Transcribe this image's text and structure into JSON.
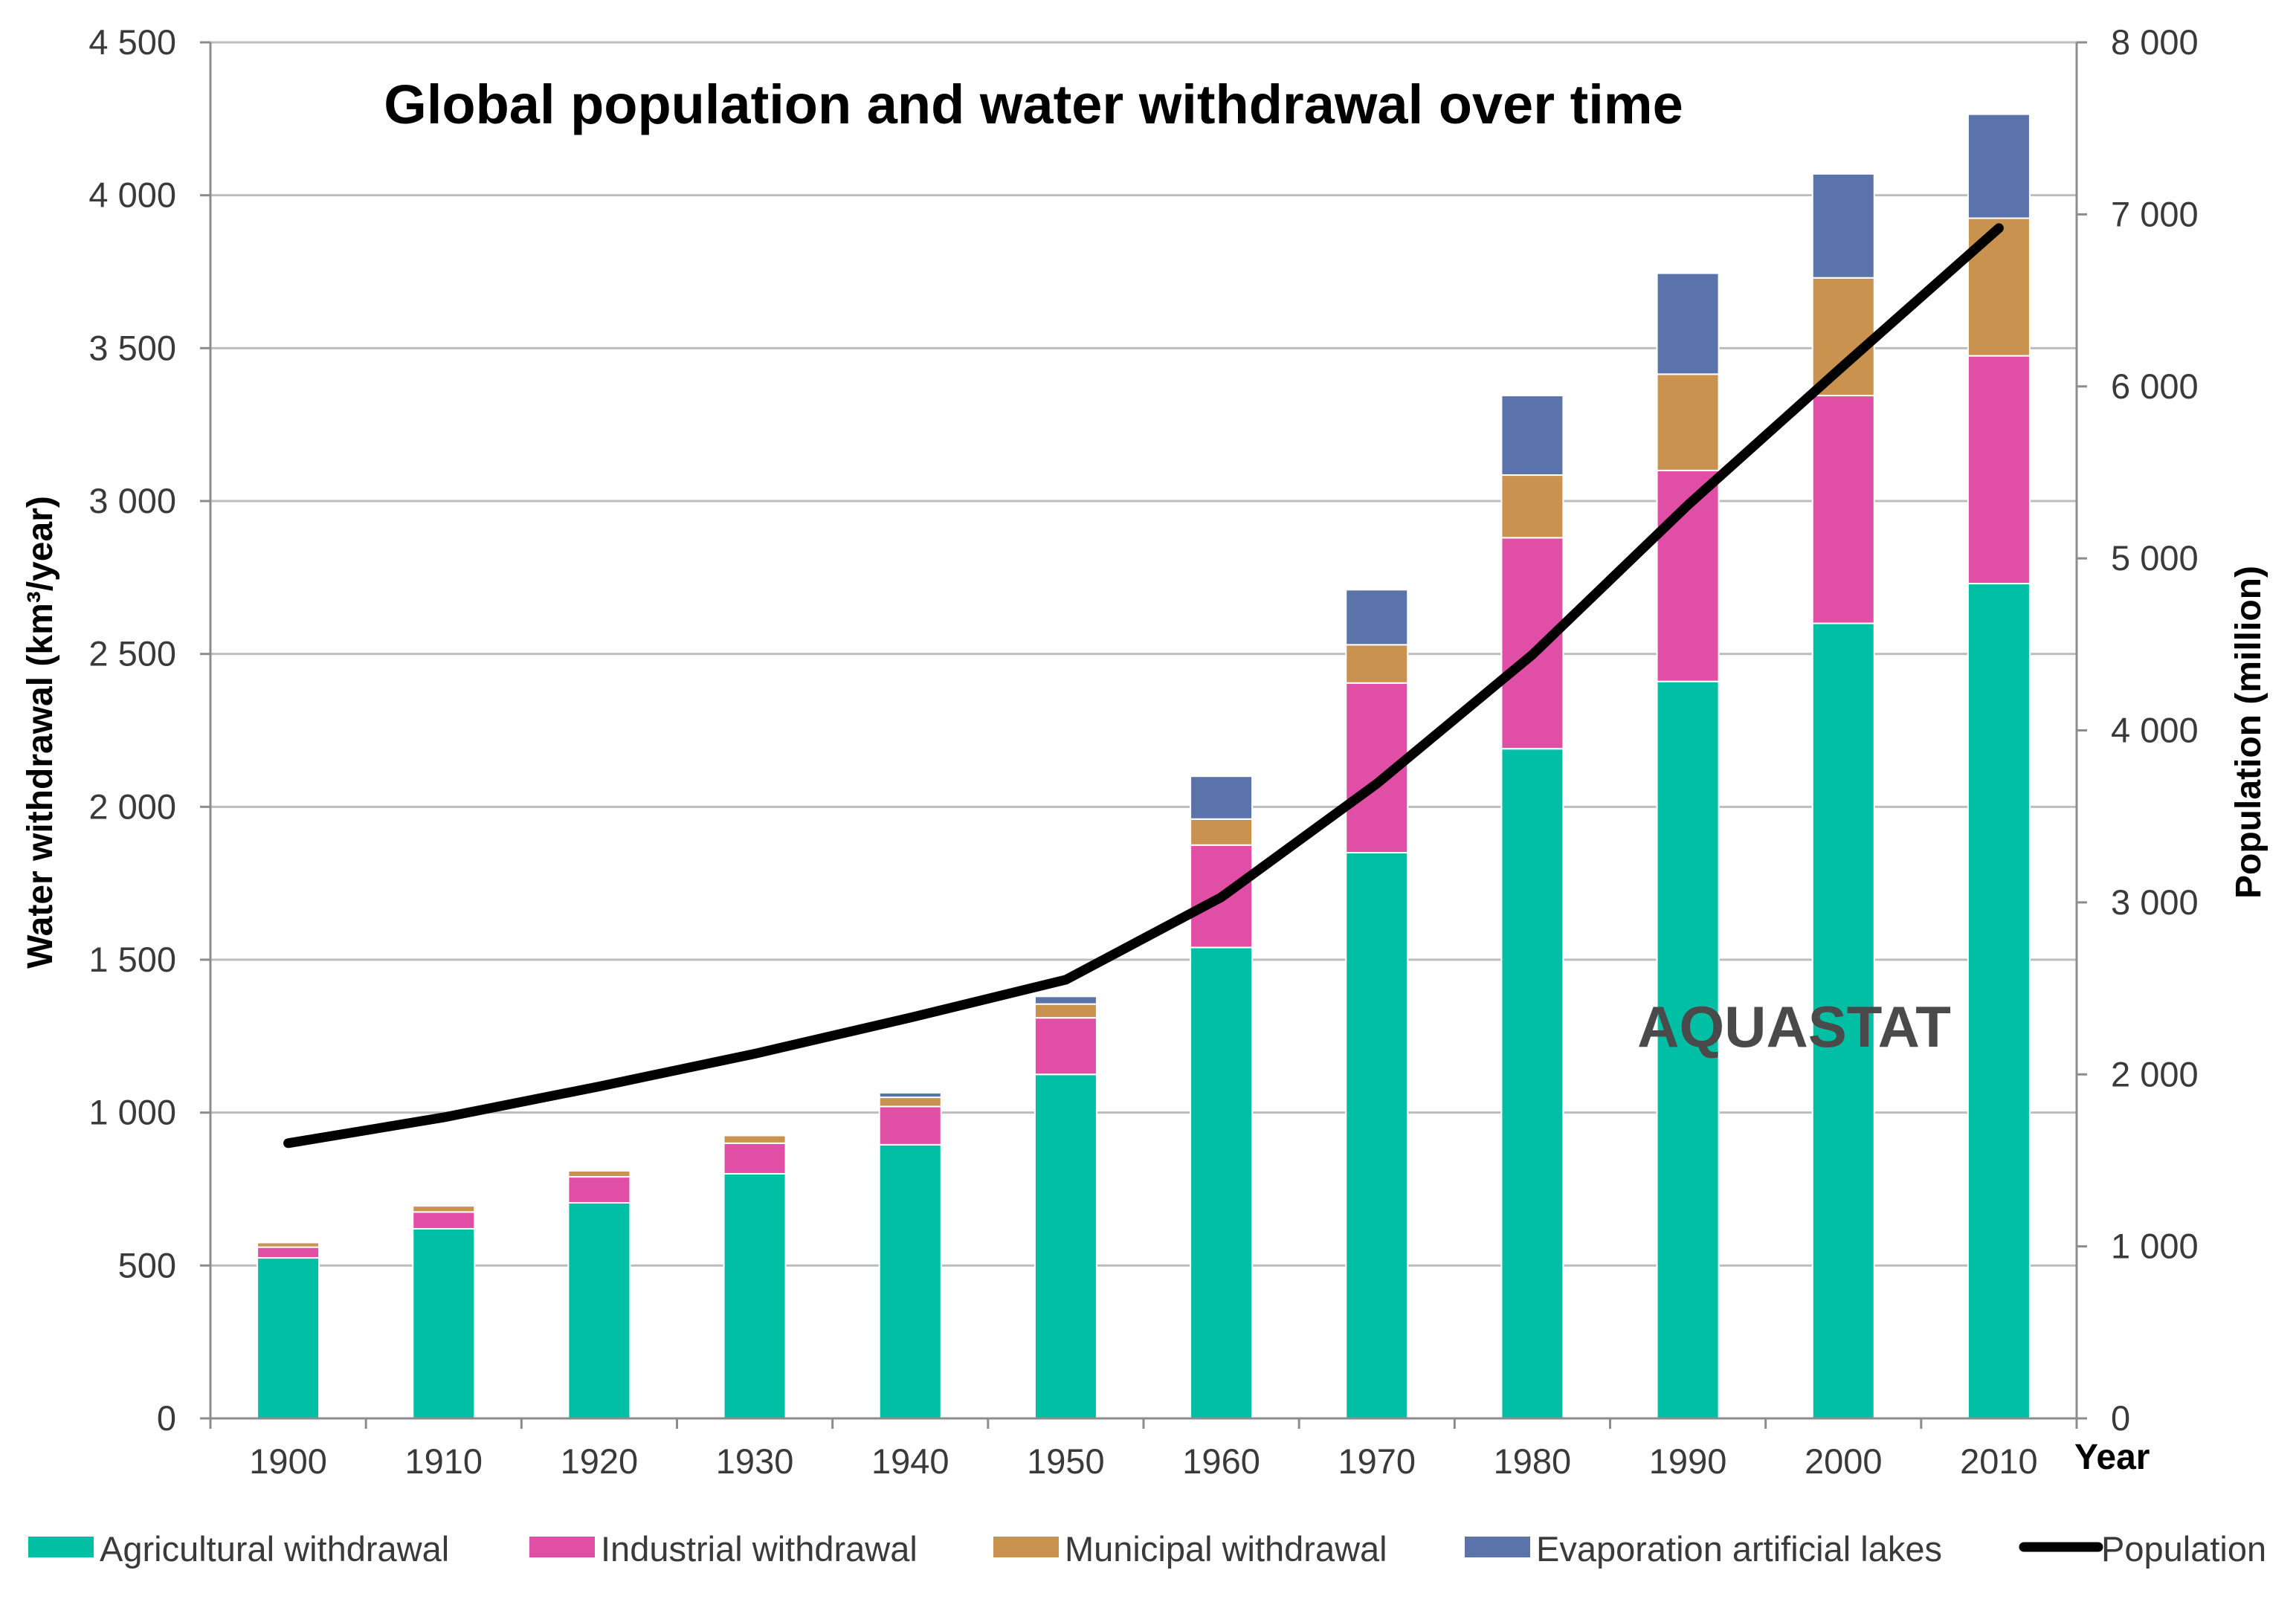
{
  "chart_data": {
    "type": "bar",
    "stacked": true,
    "title": "Global population and water withdrawal over time",
    "watermark": "AQUASTAT",
    "xlabel": "Year",
    "ylabel": "Water withdrawal (km³/year)",
    "y2label": "Population (million)",
    "ylim": [
      0,
      4500
    ],
    "y2lim": [
      0,
      8000
    ],
    "grid": true,
    "legend_position": "bottom",
    "categories": [
      "1900",
      "1910",
      "1920",
      "1930",
      "1940",
      "1950",
      "1960",
      "1970",
      "1980",
      "1990",
      "2000",
      "2010"
    ],
    "y_ticks": [
      {
        "value": 0,
        "label": "0"
      },
      {
        "value": 500,
        "label": "500"
      },
      {
        "value": 1000,
        "label": "1 000"
      },
      {
        "value": 1500,
        "label": "1 500"
      },
      {
        "value": 2000,
        "label": "2 000"
      },
      {
        "value": 2500,
        "label": "2 500"
      },
      {
        "value": 3000,
        "label": "3 000"
      },
      {
        "value": 3500,
        "label": "3 500"
      },
      {
        "value": 4000,
        "label": "4 000"
      },
      {
        "value": 4500,
        "label": "4 500"
      }
    ],
    "y2_ticks": [
      {
        "value": 0,
        "label": "0"
      },
      {
        "value": 1000,
        "label": "1 000"
      },
      {
        "value": 2000,
        "label": "2 000"
      },
      {
        "value": 3000,
        "label": "3 000"
      },
      {
        "value": 4000,
        "label": "4 000"
      },
      {
        "value": 5000,
        "label": "5 000"
      },
      {
        "value": 6000,
        "label": "6 000"
      },
      {
        "value": 7000,
        "label": "7 000"
      },
      {
        "value": 8000,
        "label": "8 000"
      }
    ],
    "series": [
      {
        "name": "Agricultural withdrawal",
        "color": "#00bfa5",
        "values": [
          525,
          620,
          705,
          800,
          895,
          1125,
          1540,
          1850,
          2190,
          2410,
          2600,
          2730
        ]
      },
      {
        "name": "Industrial withdrawal",
        "color": "#e04fa5",
        "values": [
          35,
          55,
          85,
          100,
          125,
          185,
          335,
          555,
          690,
          690,
          745,
          745
        ]
      },
      {
        "name": "Municipal withdrawal",
        "color": "#c9924f",
        "values": [
          15,
          20,
          20,
          25,
          30,
          45,
          85,
          125,
          205,
          315,
          385,
          450
        ]
      },
      {
        "name": "Evaporation artificial lakes",
        "color": "#5a73aa",
        "values": [
          0,
          0,
          5,
          5,
          15,
          25,
          140,
          180,
          260,
          330,
          340,
          340
        ]
      }
    ],
    "line_series": {
      "name": "Population",
      "color": "#000000",
      "axis": "right",
      "values": [
        1600,
        1750,
        1930,
        2120,
        2330,
        2550,
        3030,
        3690,
        4440,
        5310,
        6120,
        6920
      ]
    }
  }
}
